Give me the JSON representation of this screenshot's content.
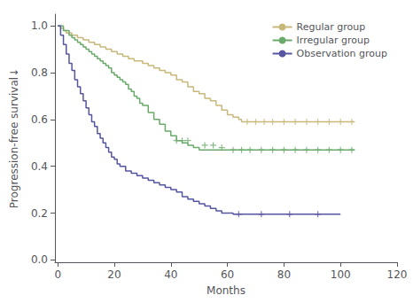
{
  "chart_data": {
    "type": "step",
    "xlabel": "Months",
    "ylabel": "Progression-free survival↓",
    "xlim": [
      -1,
      120
    ],
    "ylim": [
      -0.01,
      1.05
    ],
    "xticks": [
      0,
      20,
      40,
      60,
      80,
      100,
      120
    ],
    "yticks": [
      {
        "value": 0.0,
        "label": "0.0"
      },
      0.2,
      0.4,
      0.6,
      0.8,
      {
        "value": 1.0,
        "label": "1.0"
      }
    ],
    "grid": false,
    "legend": "upper right",
    "series": [
      {
        "name": "Regular group",
        "color": "#c8b87a",
        "marker": "plus",
        "x": [
          0,
          1,
          2,
          3,
          4,
          5,
          6,
          7,
          8,
          9,
          10,
          11,
          12,
          13,
          14,
          15,
          16,
          17,
          18,
          19,
          20,
          21,
          22,
          23,
          24,
          25,
          26,
          27,
          28,
          30,
          32,
          34,
          36,
          38,
          40,
          42,
          44,
          46,
          48,
          50,
          52,
          54,
          56,
          58,
          60,
          62,
          64,
          65,
          105
        ],
        "values": [
          1.0,
          0.99,
          0.98,
          0.97,
          0.97,
          0.96,
          0.96,
          0.95,
          0.95,
          0.94,
          0.94,
          0.93,
          0.93,
          0.92,
          0.92,
          0.91,
          0.91,
          0.9,
          0.9,
          0.89,
          0.89,
          0.88,
          0.88,
          0.87,
          0.87,
          0.86,
          0.86,
          0.85,
          0.85,
          0.84,
          0.83,
          0.82,
          0.81,
          0.8,
          0.79,
          0.77,
          0.76,
          0.74,
          0.72,
          0.71,
          0.69,
          0.68,
          0.66,
          0.64,
          0.62,
          0.61,
          0.6,
          0.59,
          0.59
        ],
        "censored_x": [
          67,
          70,
          73,
          76,
          80,
          84,
          88,
          92,
          96,
          100,
          104
        ],
        "censored_values": [
          0.59,
          0.59,
          0.59,
          0.59,
          0.59,
          0.59,
          0.59,
          0.59,
          0.59,
          0.59,
          0.59
        ]
      },
      {
        "name": "Irregular group",
        "color": "#6aaa6a",
        "marker": "plus",
        "x": [
          0,
          2,
          4,
          5,
          6,
          7,
          8,
          9,
          10,
          11,
          12,
          13,
          14,
          15,
          16,
          17,
          18,
          19,
          20,
          21,
          22,
          23,
          24,
          25,
          26,
          27,
          28,
          29,
          30,
          32,
          34,
          36,
          38,
          40,
          42,
          44,
          46,
          48,
          50,
          105
        ],
        "values": [
          1.0,
          0.98,
          0.96,
          0.95,
          0.94,
          0.93,
          0.92,
          0.91,
          0.9,
          0.89,
          0.88,
          0.87,
          0.86,
          0.85,
          0.84,
          0.83,
          0.82,
          0.8,
          0.79,
          0.78,
          0.77,
          0.76,
          0.75,
          0.73,
          0.72,
          0.7,
          0.69,
          0.67,
          0.66,
          0.63,
          0.6,
          0.58,
          0.55,
          0.53,
          0.51,
          0.5,
          0.49,
          0.48,
          0.47,
          0.47
        ],
        "censored_x": [
          42,
          44,
          46,
          52,
          55,
          58,
          62,
          65,
          68,
          72,
          76,
          80,
          84,
          88,
          92,
          96,
          100,
          104
        ],
        "censored_values": [
          0.51,
          0.51,
          0.51,
          0.49,
          0.49,
          0.48,
          0.47,
          0.47,
          0.47,
          0.47,
          0.47,
          0.47,
          0.47,
          0.47,
          0.47,
          0.47,
          0.47,
          0.47
        ]
      },
      {
        "name": "Observation group",
        "color": "#5555a0",
        "marker": "plus",
        "x": [
          0,
          1,
          2,
          3,
          4,
          5,
          6,
          7,
          8,
          9,
          10,
          11,
          12,
          13,
          14,
          15,
          16,
          17,
          18,
          19,
          20,
          21,
          22,
          24,
          26,
          28,
          30,
          32,
          34,
          36,
          38,
          40,
          42,
          44,
          46,
          48,
          50,
          52,
          54,
          56,
          58,
          60,
          62,
          100
        ],
        "values": [
          1.0,
          0.96,
          0.92,
          0.88,
          0.84,
          0.81,
          0.77,
          0.74,
          0.71,
          0.68,
          0.65,
          0.62,
          0.59,
          0.57,
          0.54,
          0.52,
          0.5,
          0.48,
          0.46,
          0.44,
          0.43,
          0.41,
          0.4,
          0.38,
          0.37,
          0.36,
          0.35,
          0.34,
          0.33,
          0.32,
          0.31,
          0.3,
          0.29,
          0.27,
          0.26,
          0.25,
          0.24,
          0.23,
          0.22,
          0.21,
          0.2,
          0.2,
          0.195,
          0.195
        ],
        "censored_x": [
          64,
          72,
          82,
          92
        ],
        "censored_values": [
          0.195,
          0.195,
          0.195,
          0.195
        ]
      }
    ]
  }
}
